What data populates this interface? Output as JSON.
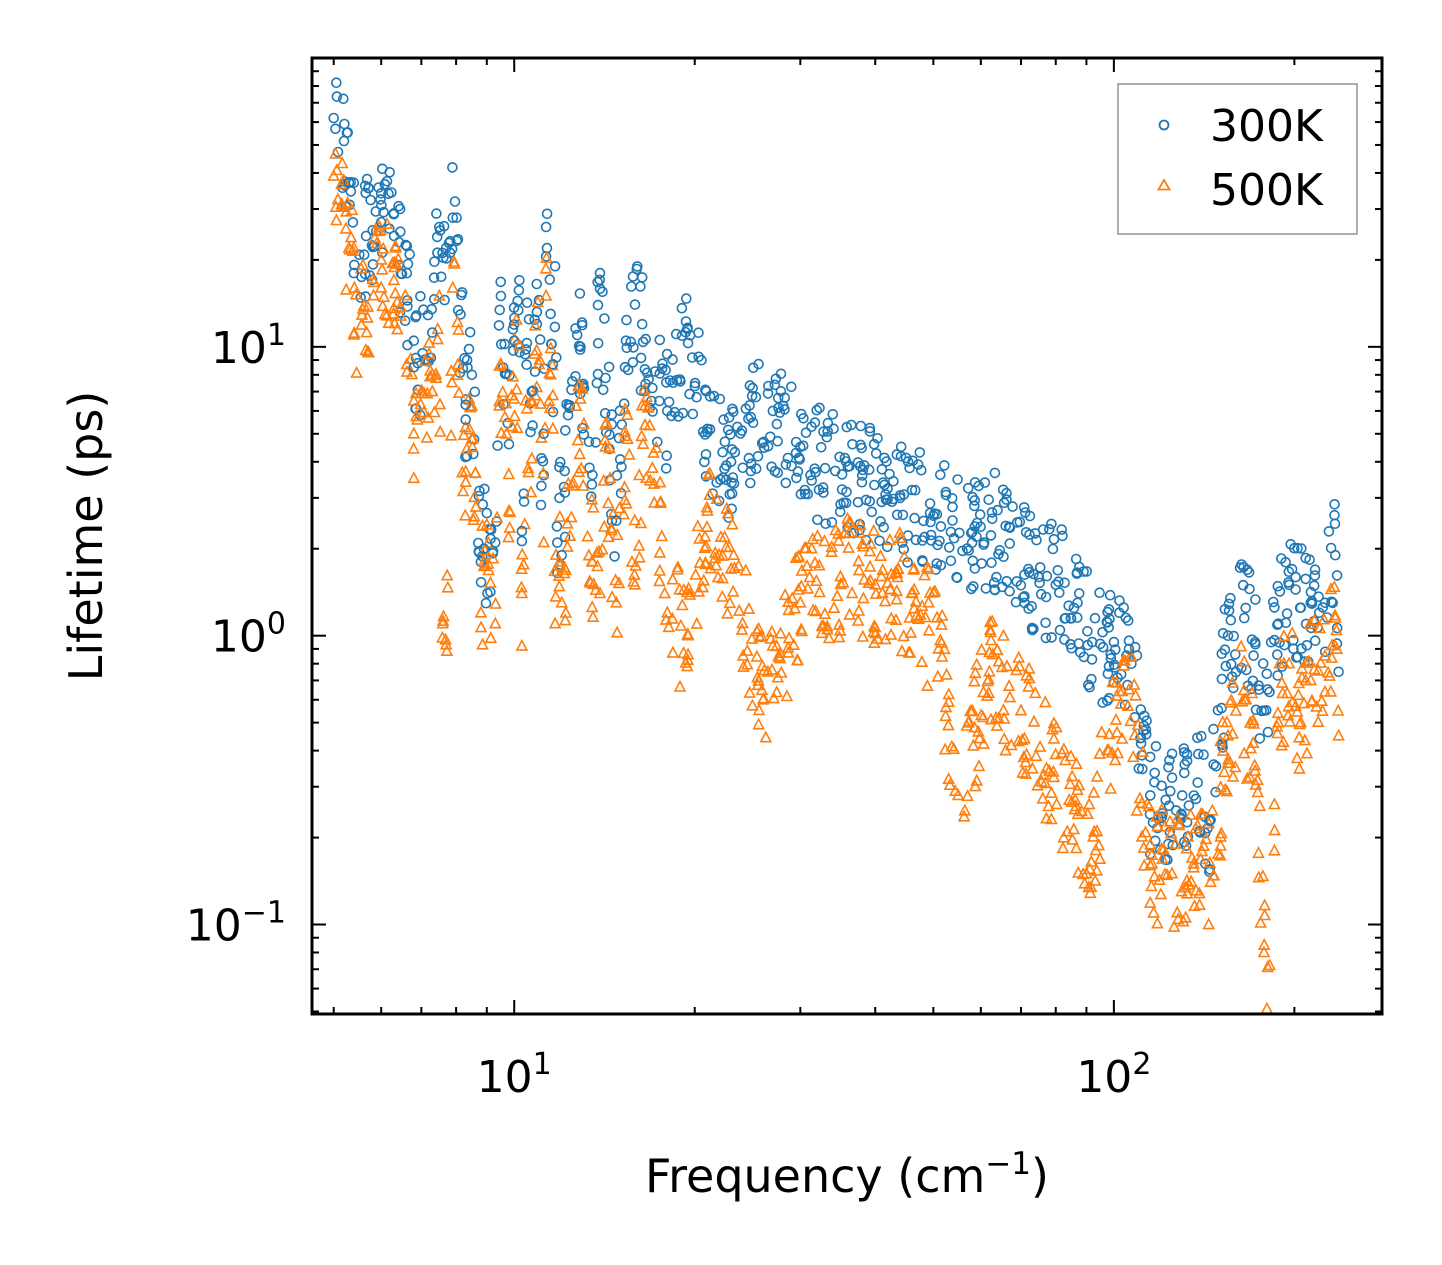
{
  "chart_data": {
    "type": "scatter",
    "xscale": "log",
    "yscale": "log",
    "xlabel_main": "Frequency (cm",
    "xlabel_sup": "−1",
    "xlabel_tail": ")",
    "ylabel": "Lifetime (ps)",
    "xlim": [
      4.6,
      280
    ],
    "ylim": [
      0.049,
      100
    ],
    "x_ticks": [
      {
        "value": 10,
        "base": "10",
        "exp": "1"
      },
      {
        "value": 100,
        "base": "10",
        "exp": "2"
      }
    ],
    "y_ticks": [
      {
        "value": 0.1,
        "base": "10",
        "exp": "−1"
      },
      {
        "value": 1,
        "base": "10",
        "exp": "0"
      },
      {
        "value": 10,
        "base": "10",
        "exp": "1"
      }
    ],
    "legend_position": "top-right",
    "series": [
      {
        "name": "300K",
        "marker": "circle",
        "color": "#1f77b4",
        "points": [
          [
            5.0,
            62
          ],
          [
            5.3,
            37
          ],
          [
            5.4,
            37
          ],
          [
            5.4,
            18
          ],
          [
            6.0,
            34
          ],
          [
            6.0,
            27
          ],
          [
            6.3,
            29
          ],
          [
            6.8,
            10.5
          ],
          [
            6.8,
            8.5
          ],
          [
            7.3,
            11.2
          ],
          [
            7.5,
            26
          ],
          [
            7.7,
            22
          ],
          [
            7.9,
            28
          ],
          [
            8.3,
            6.3
          ],
          [
            8.3,
            5.6
          ],
          [
            8.5,
            8.0
          ],
          [
            8.8,
            1.8
          ],
          [
            8.9,
            2.0
          ],
          [
            9.3,
            2.1
          ],
          [
            9.5,
            15
          ],
          [
            9.8,
            4.6
          ],
          [
            10.0,
            10.5
          ],
          [
            10.2,
            17
          ],
          [
            10.3,
            2.3
          ],
          [
            10.5,
            10.3
          ],
          [
            10.7,
            7.0
          ],
          [
            10.9,
            16.5
          ],
          [
            11.0,
            14.5
          ],
          [
            11.1,
            3.3
          ],
          [
            11.2,
            5.0
          ],
          [
            11.3,
            26
          ],
          [
            11.5,
            13
          ],
          [
            11.6,
            8.7
          ],
          [
            11.7,
            19
          ],
          [
            11.8,
            2.1
          ],
          [
            11.9,
            3.0
          ],
          [
            12.0,
            1.9
          ],
          [
            12.3,
            5.8
          ],
          [
            12.5,
            7.6
          ],
          [
            12.9,
            10
          ],
          [
            13.5,
            3.6
          ],
          [
            13.9,
            18
          ],
          [
            14.2,
            7.8
          ],
          [
            14.8,
            2.5
          ],
          [
            15.3,
            8.5
          ],
          [
            15.9,
            14
          ],
          [
            16.4,
            10.4
          ],
          [
            17.0,
            7.2
          ],
          [
            18.0,
            6.0
          ],
          [
            19.5,
            10.3
          ],
          [
            21.0,
            5.2
          ],
          [
            23.0,
            4.0
          ],
          [
            26.5,
            6.9
          ],
          [
            27.0,
            6.0
          ],
          [
            30.0,
            4.5
          ],
          [
            33.0,
            3.8
          ],
          [
            38.0,
            3.4
          ],
          [
            44.0,
            3.0
          ],
          [
            50.0,
            2.6
          ],
          [
            59.0,
            2.2
          ],
          [
            66.0,
            2.4
          ],
          [
            72.0,
            1.7
          ],
          [
            80.0,
            1.5
          ],
          [
            87.0,
            1.3
          ],
          [
            92.0,
            0.95
          ],
          [
            100.0,
            0.95
          ],
          [
            106.0,
            0.9
          ],
          [
            115.0,
            0.28
          ],
          [
            122.0,
            0.27
          ],
          [
            130.0,
            0.28
          ],
          [
            138.0,
            0.31
          ],
          [
            145.0,
            0.23
          ],
          [
            155.0,
            1.0
          ],
          [
            165.0,
            1.15
          ],
          [
            172.0,
            0.95
          ],
          [
            178.0,
            0.55
          ],
          [
            188.0,
            1.1
          ],
          [
            196.0,
            1.5
          ],
          [
            205.0,
            1.25
          ],
          [
            213.0,
            1.3
          ],
          [
            225.0,
            1.3
          ],
          [
            234.0,
            1.9
          ],
          [
            237.0,
            0.75
          ]
        ]
      },
      {
        "name": "500K",
        "marker": "triangle",
        "color": "#ff7f0e",
        "points": [
          [
            5.0,
            39
          ],
          [
            5.3,
            22
          ],
          [
            5.4,
            22
          ],
          [
            5.4,
            11
          ],
          [
            6.0,
            20
          ],
          [
            6.0,
            16
          ],
          [
            6.3,
            17
          ],
          [
            6.8,
            6.5
          ],
          [
            6.8,
            5.0
          ],
          [
            7.3,
            7.0
          ],
          [
            7.5,
            15
          ],
          [
            7.6,
            1.1
          ],
          [
            7.7,
            0.93
          ],
          [
            7.9,
            16
          ],
          [
            8.3,
            3.7
          ],
          [
            8.3,
            3.4
          ],
          [
            8.5,
            4.8
          ],
          [
            8.8,
            1.2
          ],
          [
            8.9,
            1.8
          ],
          [
            9.3,
            1.1
          ],
          [
            9.5,
            8.7
          ],
          [
            9.8,
            2.7
          ],
          [
            10.0,
            6.6
          ],
          [
            10.2,
            10.1
          ],
          [
            10.3,
            1.4
          ],
          [
            10.5,
            6.1
          ],
          [
            10.7,
            4.1
          ],
          [
            10.9,
            9.7
          ],
          [
            11.0,
            8.7
          ],
          [
            11.2,
            2.1
          ],
          [
            11.3,
            15
          ],
          [
            11.5,
            8.0
          ],
          [
            11.6,
            5.2
          ],
          [
            11.7,
            1.1
          ],
          [
            11.9,
            1.8
          ],
          [
            12.0,
            1.3
          ],
          [
            12.5,
            3.3
          ],
          [
            12.9,
            6.6
          ],
          [
            13.5,
            1.8
          ],
          [
            13.9,
            1.4
          ],
          [
            14.2,
            4.5
          ],
          [
            14.8,
            1.3
          ],
          [
            15.3,
            4.9
          ],
          [
            15.9,
            1.5
          ],
          [
            16.4,
            4.6
          ],
          [
            17.0,
            3.8
          ],
          [
            18.0,
            1.2
          ],
          [
            19.5,
            1.0
          ],
          [
            21.0,
            2.7
          ],
          [
            23.0,
            1.7
          ],
          [
            26.0,
            0.6
          ],
          [
            30.0,
            1.3
          ],
          [
            35.0,
            1.6
          ],
          [
            40.0,
            1.5
          ],
          [
            46.0,
            1.4
          ],
          [
            51.0,
            0.9
          ],
          [
            55.0,
            0.28
          ],
          [
            62.0,
            0.75
          ],
          [
            70.0,
            0.55
          ],
          [
            78.0,
            0.34
          ],
          [
            86.0,
            0.25
          ],
          [
            90.0,
            0.15
          ],
          [
            98.0,
            0.4
          ],
          [
            106.0,
            0.65
          ],
          [
            115.0,
            0.16
          ],
          [
            125.0,
            0.15
          ],
          [
            135.0,
            0.17
          ],
          [
            145.0,
            0.14
          ],
          [
            155.0,
            0.45
          ],
          [
            165.0,
            0.6
          ],
          [
            172.0,
            0.34
          ],
          [
            178.0,
            0.08
          ],
          [
            180.0,
            0.051
          ],
          [
            188.0,
            0.5
          ],
          [
            196.0,
            0.8
          ],
          [
            205.0,
            0.5
          ],
          [
            213.0,
            0.7
          ],
          [
            225.0,
            0.85
          ],
          [
            234.0,
            1.15
          ],
          [
            237.0,
            0.45
          ]
        ]
      }
    ]
  }
}
